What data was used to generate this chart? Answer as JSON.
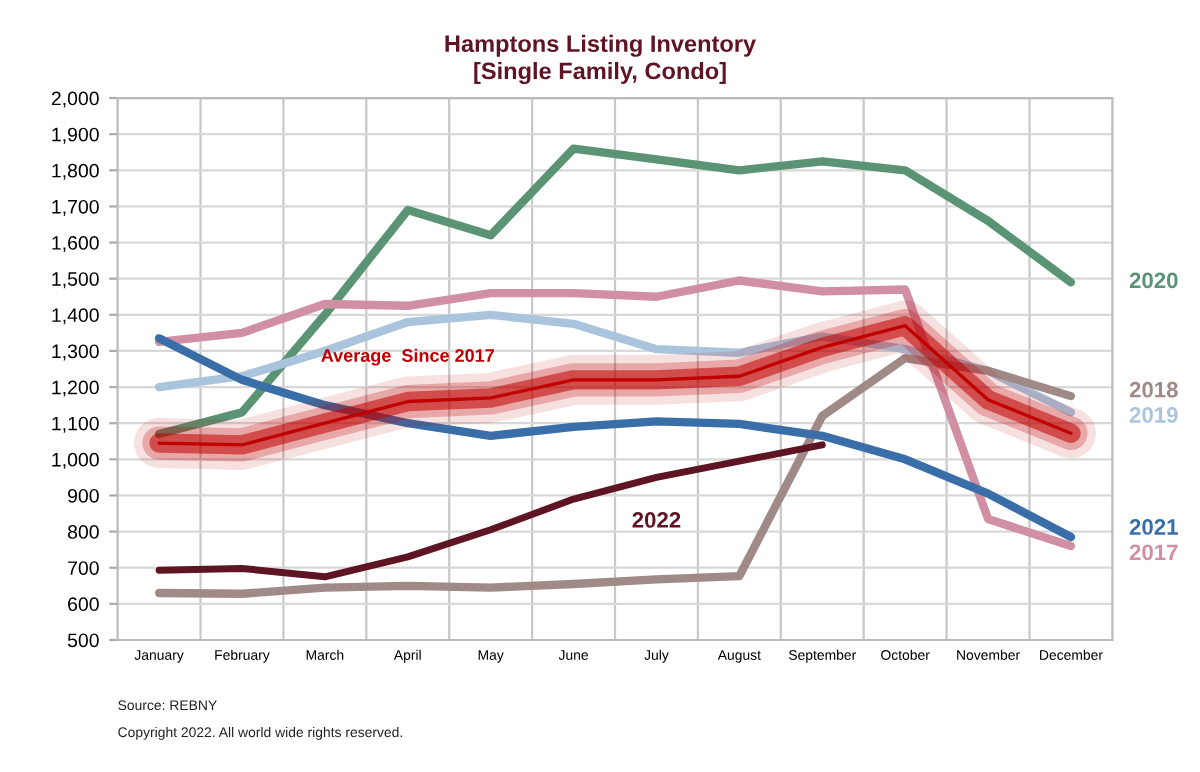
{
  "chart_data": {
    "type": "line",
    "title": "Hamptons Listing Inventory\n[Single Family, Condo]",
    "categories": [
      "January",
      "February",
      "March",
      "April",
      "May",
      "June",
      "July",
      "August",
      "September",
      "October",
      "November",
      "December"
    ],
    "series": [
      {
        "name": "2020",
        "color": "#5a9474",
        "values": [
          1070,
          1130,
          1400,
          1690,
          1620,
          1860,
          1830,
          1800,
          1825,
          1800,
          1660,
          1490
        ]
      },
      {
        "name": "2017",
        "color": "#d08fa3",
        "values": [
          1325,
          1350,
          1430,
          1425,
          1460,
          1460,
          1450,
          1495,
          1465,
          1470,
          835,
          760
        ]
      },
      {
        "name": "2019",
        "color": "#a9c4dc",
        "values": [
          1200,
          1230,
          1300,
          1380,
          1400,
          1375,
          1305,
          1295,
          1340,
          1305,
          1245,
          1130
        ]
      },
      {
        "name": "2018",
        "color": "#a08a88",
        "values": [
          630,
          628,
          645,
          650,
          645,
          655,
          668,
          677,
          1120,
          1280,
          1245,
          1175
        ]
      },
      {
        "name": "2021",
        "color": "#3a6ea8",
        "values": [
          1335,
          1220,
          1150,
          1100,
          1065,
          1090,
          1105,
          1098,
          1065,
          1000,
          905,
          785
        ]
      },
      {
        "color": "#5e1423",
        "values": [
          693,
          698,
          675,
          730,
          805,
          890,
          950,
          995,
          1040,
          null,
          null,
          null
        ]
      },
      {
        "color": "#c00000",
        "values": [
          1045,
          1040,
          1100,
          1160,
          1170,
          1220,
          1220,
          1230,
          1310,
          1370,
          1165,
          1072
        ]
      }
    ],
    "ylim": [
      500,
      2000
    ],
    "yticks": [
      {
        "value": 500,
        "label": "500"
      },
      {
        "value": 600,
        "label": "600"
      },
      {
        "value": 700,
        "label": "700"
      },
      {
        "value": 800,
        "label": "800"
      },
      {
        "value": 900,
        "label": "900"
      },
      {
        "value": 1000,
        "label": "1,000"
      },
      {
        "value": 1100,
        "label": "1,100"
      },
      {
        "value": 1200,
        "label": "1,200"
      },
      {
        "value": 1300,
        "label": "1,300"
      },
      {
        "value": 1400,
        "label": "1,400"
      },
      {
        "value": 1500,
        "label": "1,500"
      },
      {
        "value": 1600,
        "label": "1,600"
      },
      {
        "value": 1700,
        "label": "1,700"
      },
      {
        "value": 1800,
        "label": "1,800"
      },
      {
        "value": 1900,
        "label": "1,900"
      },
      {
        "value": 2000,
        "label": "2,000"
      }
    ],
    "grid": true,
    "legend": false,
    "marker": "none",
    "line_style": "solid",
    "annotations": [
      {
        "text": "Average  Since 2017",
        "x": "April",
        "y": 1160
      },
      {
        "text": "2022",
        "x": "July",
        "y": 950
      },
      "Source: REBNY",
      "Copyright 2022. All world wide rights reserved."
    ]
  }
}
